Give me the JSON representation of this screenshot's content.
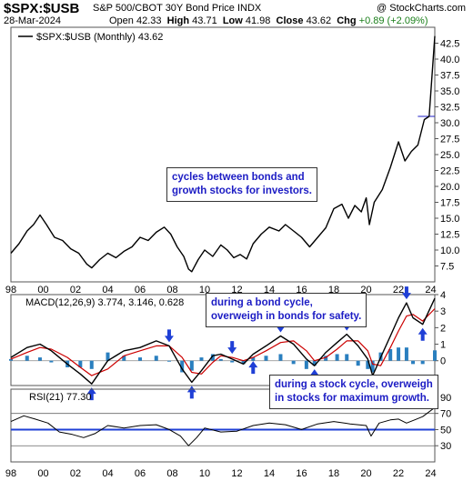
{
  "header": {
    "symbol": "$SPX:$USB",
    "description": "S&P 500/CBOT 30Y Bond Price INDX",
    "brand": "@ StockCharts.com",
    "date": "28-Mar-2024",
    "open_label": "Open",
    "open": "42.33",
    "high_label": "High",
    "high": "43.71",
    "low_label": "Low",
    "low": "41.98",
    "close_label": "Close",
    "close": "43.62",
    "chg_label": "Chg",
    "chg": "+0.89 (+2.09%)"
  },
  "colors": {
    "price_line": "#000000",
    "macd_line": "#000000",
    "signal_line": "#cc0000",
    "histogram": "#2a7fbf",
    "arrow": "#1f3fd6",
    "rsi_band": "#1f3fd6",
    "annotation_text": "#1c1cc4"
  },
  "annotations": {
    "main": "cycles between bonds and\ngrowth stocks for investors.",
    "bond_cycle": "during a bond cycle,\noverweigh in bonds for safety.",
    "stock_cycle": "during a stock cycle, overweigh\nin stocks for maximum growth."
  },
  "chart_data": [
    {
      "type": "line",
      "panel": "price",
      "legend": "$SPX:$USB (Monthly) 43.62",
      "ylim": [
        5,
        45
      ],
      "yticks": [
        "7.5",
        "10.0",
        "12.5",
        "15.0",
        "17.5",
        "20.0",
        "22.5",
        "25.0",
        "27.5",
        "30.0",
        "32.5",
        "35.0",
        "37.5",
        "40.0",
        "42.5"
      ],
      "x_range": [
        1998,
        2024.25
      ],
      "xticks": [
        "98",
        "00",
        "02",
        "04",
        "06",
        "08",
        "10",
        "12",
        "14",
        "16",
        "18",
        "20",
        "22",
        "24"
      ],
      "x": [
        1998.0,
        1998.5,
        1999.0,
        1999.4,
        1999.8,
        2000.2,
        2000.7,
        2001.2,
        2001.7,
        2002.2,
        2002.7,
        2003.0,
        2003.5,
        2004.0,
        2004.5,
        2005.0,
        2005.5,
        2006.0,
        2006.5,
        2007.0,
        2007.5,
        2007.9,
        2008.3,
        2008.7,
        2009.0,
        2009.2,
        2009.6,
        2010.0,
        2010.5,
        2011.0,
        2011.4,
        2011.8,
        2012.2,
        2012.6,
        2013.0,
        2013.5,
        2014.0,
        2014.6,
        2015.0,
        2015.5,
        2016.0,
        2016.5,
        2017.0,
        2017.5,
        2018.0,
        2018.5,
        2018.9,
        2019.3,
        2019.7,
        2020.0,
        2020.2,
        2020.5,
        2021.0,
        2021.5,
        2022.0,
        2022.4,
        2022.8,
        2023.2,
        2023.6,
        2023.9,
        2024.25
      ],
      "y": [
        9.5,
        11.0,
        13.0,
        14.0,
        15.5,
        14.0,
        12.0,
        11.5,
        10.2,
        9.5,
        7.8,
        7.2,
        8.5,
        9.5,
        8.8,
        9.8,
        10.5,
        12.0,
        11.5,
        12.8,
        13.6,
        12.5,
        10.5,
        9.0,
        7.0,
        6.6,
        8.5,
        10.0,
        9.0,
        10.8,
        10.0,
        8.8,
        9.3,
        8.6,
        11.0,
        12.5,
        13.6,
        13.0,
        14.0,
        13.0,
        12.0,
        10.5,
        12.0,
        13.5,
        16.5,
        17.2,
        15.0,
        17.0,
        16.0,
        18.2,
        14.0,
        17.5,
        19.5,
        23.0,
        27.0,
        24.0,
        25.5,
        26.5,
        30.5,
        31.0,
        43.62
      ],
      "annotations": [
        "cycles between bonds and growth stocks for investors."
      ]
    },
    {
      "type": "line",
      "panel": "macd",
      "legend": "MACD(12,26,9) 3.774, 3.146, 0.628",
      "series": [
        {
          "name": "MACD(12,26,9)",
          "last": 3.774
        },
        {
          "name": "Signal",
          "last": 3.146
        },
        {
          "name": "Histogram",
          "last": 0.628
        }
      ],
      "ylim": [
        -1.5,
        4
      ],
      "yticks": [
        "0",
        "1",
        "2",
        "3",
        "4"
      ],
      "x": [
        1998.0,
        1999.0,
        1999.8,
        2000.5,
        2001.5,
        2002.3,
        2003.0,
        2004.0,
        2005.0,
        2006.0,
        2007.0,
        2007.8,
        2008.6,
        2009.2,
        2009.8,
        2010.5,
        2011.0,
        2011.7,
        2012.4,
        2013.0,
        2013.8,
        2014.7,
        2015.5,
        2016.3,
        2016.8,
        2017.5,
        2018.2,
        2018.8,
        2019.5,
        2020.1,
        2020.4,
        2020.9,
        2021.5,
        2022.0,
        2022.5,
        2022.9,
        2023.5,
        2024.25
      ],
      "macd": [
        0.2,
        0.8,
        1.0,
        0.6,
        -0.2,
        -0.8,
        -1.4,
        0.0,
        0.6,
        0.8,
        1.2,
        0.9,
        -0.5,
        -1.3,
        -0.6,
        0.3,
        0.4,
        0.1,
        -0.2,
        0.4,
        0.9,
        1.5,
        1.0,
        0.1,
        -0.3,
        0.5,
        1.1,
        1.6,
        0.9,
        0.1,
        -0.9,
        0.2,
        1.5,
        2.6,
        3.5,
        2.6,
        2.2,
        3.774
      ],
      "signal": [
        0.1,
        0.5,
        0.8,
        0.7,
        0.2,
        -0.4,
        -0.9,
        -0.5,
        0.3,
        0.6,
        0.9,
        0.9,
        0.2,
        -0.7,
        -0.8,
        -0.1,
        0.3,
        0.2,
        0.0,
        0.2,
        0.6,
        1.1,
        1.2,
        0.6,
        0.0,
        0.2,
        0.7,
        1.2,
        1.2,
        0.6,
        -0.2,
        -0.3,
        0.8,
        1.8,
        2.7,
        2.8,
        2.4,
        3.146
      ],
      "annotations": [
        "during a bond cycle, overweigh in bonds for safety.",
        "during a stock cycle, overweigh in stocks for maximum growth."
      ]
    },
    {
      "type": "line",
      "panel": "rsi",
      "legend": "RSI(21) 77.30",
      "ylim": [
        10,
        100
      ],
      "yticks": [
        "30",
        "50",
        "70",
        "90"
      ],
      "reference_lines": [
        30,
        50,
        70
      ],
      "x": [
        1998.0,
        1998.8,
        1999.5,
        2000.3,
        2001.0,
        2001.8,
        2002.5,
        2003.2,
        2004.0,
        2005.0,
        2006.0,
        2007.0,
        2007.8,
        2008.5,
        2009.0,
        2009.5,
        2010.0,
        2011.0,
        2012.0,
        2013.0,
        2014.0,
        2015.0,
        2016.0,
        2017.0,
        2018.0,
        2019.0,
        2020.0,
        2020.3,
        2020.8,
        2021.5,
        2022.0,
        2022.5,
        2023.0,
        2023.5,
        2024.25
      ],
      "y": [
        60,
        67,
        63,
        58,
        47,
        44,
        40,
        45,
        55,
        52,
        55,
        56,
        50,
        42,
        30,
        40,
        52,
        47,
        48,
        55,
        58,
        56,
        50,
        57,
        60,
        57,
        55,
        42,
        58,
        62,
        63,
        58,
        62,
        66,
        77.3
      ]
    }
  ],
  "x_axis_labels": [
    "98",
    "00",
    "02",
    "04",
    "06",
    "08",
    "10",
    "12",
    "14",
    "16",
    "18",
    "20",
    "22",
    "24"
  ]
}
